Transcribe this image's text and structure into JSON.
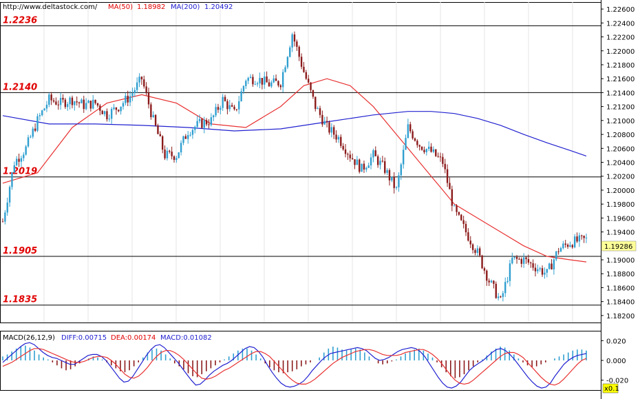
{
  "header": {
    "site_url": "http://www.deltastock.com/",
    "ma50_label": "MA(50)",
    "ma50_value": "1.18982",
    "ma200_label": "MA(200)",
    "ma200_value": "1.20492"
  },
  "macd_header": {
    "title": "MACD(26,12,9)",
    "diff": "DIFF:0.00715",
    "dea": "DEA:0.00174",
    "macd": "MACD:0.01082"
  },
  "colors": {
    "bull": "#2f9fd0",
    "bear": "#8b1a1a",
    "ma50": "#e83030",
    "ma200": "#2020d0",
    "level_text": "#e00000",
    "current_price_bg": "#ffff99",
    "zoom_bg": "#ffff00"
  },
  "current_price": "1.19286",
  "zoom_label": "x0.1",
  "chart_data": [
    {
      "type": "candlestick",
      "title": "",
      "ylim": [
        1.181,
        1.227
      ],
      "y_ticks": [
        "1.22600",
        "1.22400",
        "1.22200",
        "1.22000",
        "1.21800",
        "1.21600",
        "1.21400",
        "1.21200",
        "1.21000",
        "1.20800",
        "1.20600",
        "1.20400",
        "1.20200",
        "1.20000",
        "1.19800",
        "1.19600",
        "1.19400",
        "1.19000",
        "1.18800",
        "1.18600",
        "1.18400",
        "1.18200"
      ],
      "levels": [
        {
          "value": 1.2236,
          "label": "1.2236"
        },
        {
          "value": 1.214,
          "label": "1.2140"
        },
        {
          "value": 1.2019,
          "label": "1.2019"
        },
        {
          "value": 1.1905,
          "label": "1.1905"
        },
        {
          "value": 1.1835,
          "label": "1.1835"
        }
      ],
      "series": [
        {
          "name": "MA(50)",
          "x": [
            0,
            15,
            30,
            45,
            60,
            75,
            90,
            105,
            120,
            130,
            140,
            150,
            160,
            170,
            175,
            180,
            185,
            190,
            195,
            205,
            215,
            225,
            235,
            245,
            252
          ],
          "y": [
            1.201,
            1.2025,
            1.209,
            1.2125,
            1.2137,
            1.2125,
            1.2095,
            1.209,
            1.212,
            1.215,
            1.216,
            1.215,
            1.212,
            1.208,
            1.206,
            1.204,
            1.202,
            1.2,
            1.198,
            1.196,
            1.194,
            1.192,
            1.1905,
            1.19,
            1.1897
          ]
        },
        {
          "name": "MA(200)",
          "x": [
            0,
            20,
            40,
            60,
            80,
            100,
            120,
            140,
            160,
            175,
            185,
            195,
            205,
            215,
            225,
            235,
            245,
            252
          ],
          "y": [
            1.2107,
            1.2095,
            1.2095,
            1.2093,
            1.209,
            1.2085,
            1.2088,
            1.2098,
            1.2108,
            1.2113,
            1.2113,
            1.211,
            1.2103,
            1.2093,
            1.208,
            1.2068,
            1.2057,
            1.2049
          ]
        }
      ],
      "ohlc": {
        "close_path_x": [
          0,
          5,
          10,
          15,
          20,
          25,
          30,
          35,
          40,
          45,
          50,
          55,
          60,
          65,
          70,
          75,
          80,
          85,
          90,
          95,
          100,
          105,
          110,
          115,
          120,
          125,
          130,
          135,
          140,
          145,
          150,
          155,
          160,
          165,
          170,
          175,
          180,
          185,
          190,
          195,
          200,
          205,
          210,
          215,
          220,
          225,
          230,
          235,
          240,
          245,
          252
        ],
        "close_path_y": [
          1.1955,
          1.204,
          1.206,
          1.21,
          1.213,
          1.2125,
          1.213,
          1.2122,
          1.2125,
          1.2108,
          1.212,
          1.2135,
          1.216,
          1.21,
          1.205,
          1.205,
          1.2085,
          1.2095,
          1.21,
          1.213,
          1.211,
          1.216,
          1.216,
          1.2152,
          1.2155,
          1.2225,
          1.217,
          1.212,
          1.209,
          1.2075,
          1.205,
          1.203,
          1.205,
          1.203,
          1.2,
          1.209,
          1.2065,
          1.2055,
          1.204,
          1.197,
          1.194,
          1.191,
          1.187,
          1.184,
          1.19,
          1.19,
          1.189,
          1.188,
          1.1915,
          1.1925,
          1.1929
        ]
      }
    },
    {
      "type": "macd",
      "title": "MACD(26,12,9)",
      "ylim": [
        -0.03,
        0.03
      ],
      "y_ticks": [
        "0.020",
        "0.000",
        "-0.020"
      ],
      "histogram": [
        0.004,
        0.006,
        0.009,
        0.012,
        0.014,
        0.015,
        0.013,
        0.01,
        0.006,
        0.003,
        0.001,
        -0.002,
        -0.005,
        -0.008,
        -0.01,
        -0.009,
        -0.006,
        -0.003,
        0.0,
        0.002,
        0.004,
        0.003,
        0.001,
        -0.002,
        -0.005,
        -0.008,
        -0.011,
        -0.012,
        -0.01,
        -0.006,
        -0.002,
        0.003,
        0.008,
        0.011,
        0.012,
        0.01,
        0.006,
        0.002,
        -0.003,
        -0.006,
        -0.009,
        -0.013,
        -0.016,
        -0.017,
        -0.014,
        -0.011,
        -0.008,
        -0.005,
        -0.002,
        0.001,
        0.004,
        0.007,
        0.01,
        0.012,
        0.012,
        0.01,
        0.006,
        0.002,
        -0.003,
        -0.007,
        -0.01,
        -0.012,
        -0.013,
        -0.012,
        -0.011,
        -0.009,
        -0.006,
        -0.004,
        -0.002,
        0.0,
        0.003,
        0.008,
        0.012,
        0.014,
        0.013,
        0.011,
        0.01,
        0.011,
        0.012,
        0.011,
        0.008,
        0.004,
        0.0,
        -0.003,
        -0.004,
        -0.003,
        -0.001,
        0.001,
        0.004,
        0.007,
        0.009,
        0.011,
        0.012,
        0.01,
        0.007,
        0.003,
        -0.002,
        -0.007,
        -0.012,
        -0.016,
        -0.018,
        -0.017,
        -0.014,
        -0.01,
        -0.006,
        -0.002,
        0.001,
        0.005,
        0.009,
        0.012,
        0.014,
        0.013,
        0.01,
        0.006,
        0.002,
        -0.002,
        -0.005,
        -0.007,
        -0.006,
        -0.004,
        -0.002,
        0.0,
        0.002,
        0.004,
        0.006,
        0.008,
        0.01,
        0.011,
        0.011,
        0.01
      ],
      "series": [
        {
          "name": "DIFF",
          "values": [
            -0.002,
            0.002,
            0.006,
            0.01,
            0.014,
            0.017,
            0.018,
            0.016,
            0.012,
            0.008,
            0.005,
            0.003,
            0.002,
            0.0,
            -0.002,
            -0.004,
            -0.004,
            -0.001,
            0.002,
            0.005,
            0.006,
            0.006,
            0.004,
            0.0,
            -0.006,
            -0.012,
            -0.018,
            -0.022,
            -0.021,
            -0.016,
            -0.009,
            -0.002,
            0.005,
            0.011,
            0.015,
            0.016,
            0.013,
            0.008,
            0.003,
            -0.002,
            -0.008,
            -0.014,
            -0.02,
            -0.025,
            -0.024,
            -0.02,
            -0.015,
            -0.011,
            -0.008,
            -0.005,
            -0.003,
            0.0,
            0.004,
            0.008,
            0.012,
            0.014,
            0.013,
            0.009,
            0.003,
            -0.005,
            -0.012,
            -0.018,
            -0.023,
            -0.026,
            -0.027,
            -0.026,
            -0.024,
            -0.021,
            -0.016,
            -0.01,
            -0.005,
            0.0,
            0.004,
            0.007,
            0.008,
            0.009,
            0.01,
            0.011,
            0.012,
            0.013,
            0.012,
            0.01,
            0.006,
            0.002,
            0.0,
            0.001,
            0.003,
            0.006,
            0.009,
            0.011,
            0.012,
            0.013,
            0.012,
            0.009,
            0.004,
            -0.003,
            -0.01,
            -0.017,
            -0.023,
            -0.027,
            -0.028,
            -0.026,
            -0.022,
            -0.016,
            -0.01,
            -0.006,
            -0.003,
            0.0,
            0.004,
            0.008,
            0.011,
            0.012,
            0.01,
            0.006,
            0.001,
            -0.005,
            -0.011,
            -0.017,
            -0.022,
            -0.026,
            -0.028,
            -0.027,
            -0.023,
            -0.016,
            -0.01,
            -0.004,
            0.0,
            0.003,
            0.005,
            0.006,
            0.007
          ]
        },
        {
          "name": "DEA",
          "values": [
            -0.006,
            -0.004,
            -0.002,
            0.001,
            0.004,
            0.007,
            0.01,
            0.012,
            0.012,
            0.011,
            0.009,
            0.007,
            0.005,
            0.003,
            0.001,
            -0.001,
            -0.002,
            -0.002,
            -0.001,
            0.001,
            0.003,
            0.004,
            0.004,
            0.003,
            0.0,
            -0.004,
            -0.009,
            -0.014,
            -0.017,
            -0.018,
            -0.016,
            -0.012,
            -0.007,
            -0.001,
            0.004,
            0.008,
            0.01,
            0.01,
            0.008,
            0.005,
            0.001,
            -0.004,
            -0.009,
            -0.014,
            -0.018,
            -0.019,
            -0.018,
            -0.016,
            -0.013,
            -0.01,
            -0.008,
            -0.005,
            -0.002,
            0.001,
            0.004,
            0.007,
            0.009,
            0.009,
            0.007,
            0.004,
            -0.001,
            -0.006,
            -0.011,
            -0.016,
            -0.02,
            -0.023,
            -0.024,
            -0.024,
            -0.022,
            -0.019,
            -0.015,
            -0.011,
            -0.007,
            -0.003,
            0.0,
            0.003,
            0.005,
            0.007,
            0.009,
            0.01,
            0.011,
            0.011,
            0.01,
            0.008,
            0.006,
            0.005,
            0.005,
            0.005,
            0.006,
            0.008,
            0.009,
            0.01,
            0.011,
            0.011,
            0.009,
            0.006,
            0.002,
            -0.003,
            -0.009,
            -0.015,
            -0.02,
            -0.023,
            -0.024,
            -0.023,
            -0.02,
            -0.016,
            -0.012,
            -0.008,
            -0.004,
            0.0,
            0.004,
            0.007,
            0.008,
            0.008,
            0.006,
            0.003,
            -0.002,
            -0.007,
            -0.012,
            -0.017,
            -0.021,
            -0.024,
            -0.025,
            -0.023,
            -0.019,
            -0.014,
            -0.009,
            -0.004,
            0.0,
            0.002
          ]
        }
      ]
    }
  ]
}
